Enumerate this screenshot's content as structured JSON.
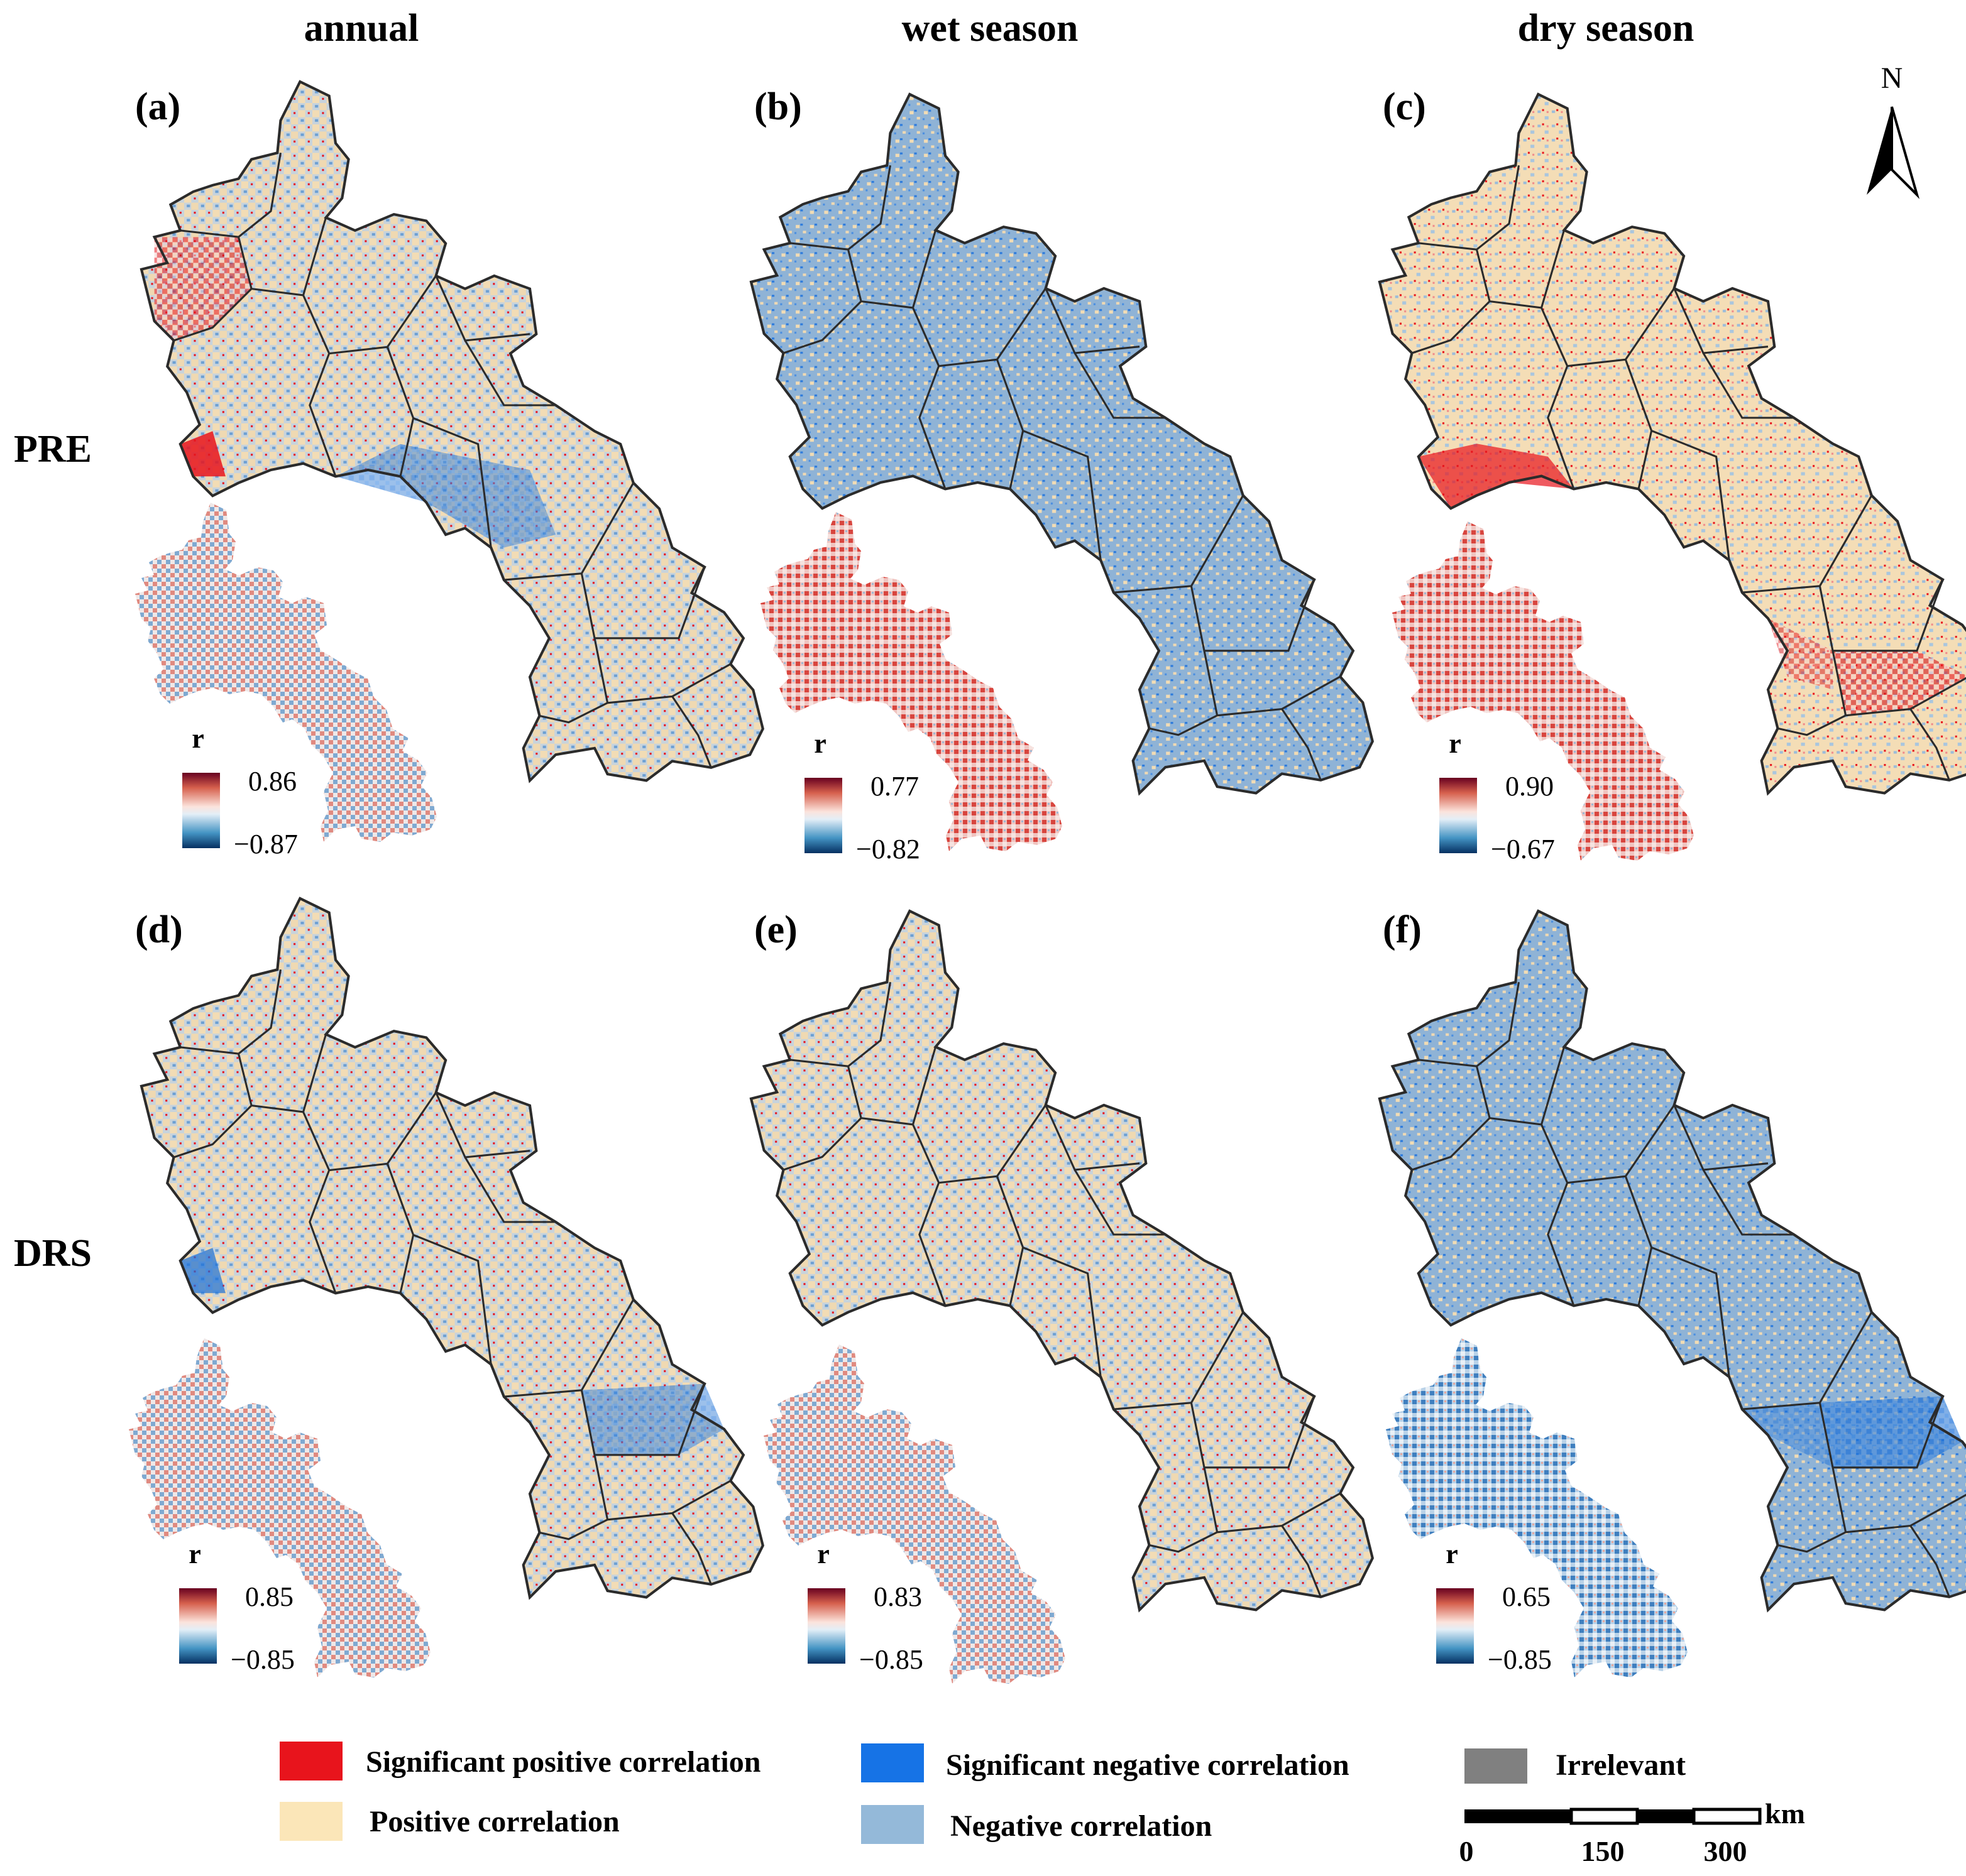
{
  "columns": [
    "annual",
    "wet season",
    "dry season"
  ],
  "rows": [
    "PRE",
    "DRS"
  ],
  "panels": [
    {
      "label": "(a)",
      "colorbar": {
        "title": "r",
        "max": "0.86",
        "min": "−0.87"
      },
      "main_tone": "mixed-red-west-blue-east",
      "inset_tone": "red-west-blue-center"
    },
    {
      "label": "(b)",
      "colorbar": {
        "title": "r",
        "max": "0.77",
        "min": "−0.82"
      },
      "main_tone": "mostly-negative",
      "inset_tone": "mostly-positive"
    },
    {
      "label": "(c)",
      "colorbar": {
        "title": "r",
        "max": "0.90",
        "min": "−0.67"
      },
      "main_tone": "mostly-positive",
      "inset_tone": "mostly-positive"
    },
    {
      "label": "(d)",
      "colorbar": {
        "title": "r",
        "max": "0.85",
        "min": "−0.85"
      },
      "main_tone": "mixed-blue-south",
      "inset_tone": "red-north-blue-south"
    },
    {
      "label": "(e)",
      "colorbar": {
        "title": "r",
        "max": "0.83",
        "min": "−0.85"
      },
      "main_tone": "mixed",
      "inset_tone": "red-north-blue-south"
    },
    {
      "label": "(f)",
      "colorbar": {
        "title": "r",
        "max": "0.65",
        "min": "−0.85"
      },
      "main_tone": "mostly-negative",
      "inset_tone": "mixed-blue-south"
    }
  ],
  "legend": [
    {
      "label": "Significant positive correlation",
      "color": "#e8141c"
    },
    {
      "label": "Significant negative correlation",
      "color": "#1673e6"
    },
    {
      "label": "Irrelevant",
      "color": "#808080"
    },
    {
      "label": "Positive correlation",
      "color": "#fbe6b8"
    },
    {
      "label": "Negative correlation",
      "color": "#94b9d9"
    }
  ],
  "north_arrow": {
    "label": "N"
  },
  "scale_bar": {
    "unit": "km",
    "ticks": [
      "0",
      "150",
      "300"
    ]
  },
  "colors": {
    "boundary": "#2b2b2b",
    "colorbar_top": "#b2182b",
    "colorbar_mid": "#f7f7f7",
    "colorbar_bottom": "#2166ac"
  }
}
